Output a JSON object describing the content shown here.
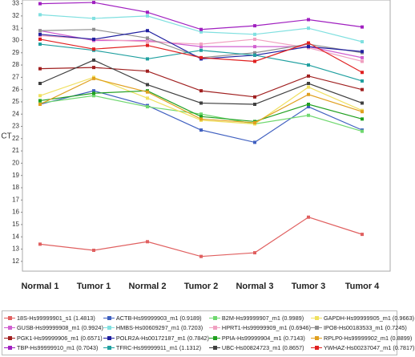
{
  "chart_data": {
    "type": "line",
    "y_label": "CT",
    "categories": [
      "Normal 1",
      "Tumor 1",
      "Normal 2",
      "Tumor 2",
      "Normal 3",
      "Tumor 3",
      "Tumor 4"
    ],
    "ylim": [
      11.2,
      33.3
    ],
    "yticks": [
      12,
      13,
      14,
      15,
      16,
      17,
      18,
      19,
      20,
      21,
      22,
      23,
      24,
      25,
      26,
      27,
      28,
      29,
      30,
      31,
      32,
      33
    ],
    "series": [
      {
        "name": "18S-Hs99999901_s1 (1.4813)",
        "color": "#e06060",
        "values": [
          13.4,
          12.9,
          13.6,
          12.4,
          12.7,
          15.6,
          14.2
        ]
      },
      {
        "name": "ACTB-Hs99999903_m1 (0.9189)",
        "color": "#4060c0",
        "values": [
          24.8,
          25.9,
          24.7,
          22.7,
          21.7,
          24.6,
          22.7
        ]
      },
      {
        "name": "B2M-Hs99999907_m1 (0.9989)",
        "color": "#70d870",
        "values": [
          24.9,
          25.5,
          24.6,
          24.0,
          23.2,
          23.9,
          22.6
        ]
      },
      {
        "name": "GAPDH-Hs99999905_m1 (0.9663)",
        "color": "#f0e060",
        "values": [
          25.5,
          27.0,
          25.3,
          23.5,
          23.2,
          26.2,
          24.3
        ]
      },
      {
        "name": "GUSB-Hs99999908_m1 (0.9924)",
        "color": "#d060d0",
        "values": [
          30.8,
          30.0,
          30.0,
          29.5,
          29.5,
          29.5,
          28.6
        ]
      },
      {
        "name": "HMBS-Hs00609297_m1 (0.7203)",
        "color": "#80e0e0",
        "values": [
          32.1,
          31.8,
          32.0,
          30.7,
          30.5,
          31.0,
          29.9
        ]
      },
      {
        "name": "HPRT1-Hs99999909_m1 (0.6946)",
        "color": "#f0a0c0",
        "values": [
          30.4,
          30.1,
          29.9,
          29.7,
          30.1,
          29.4,
          28.3
        ]
      },
      {
        "name": "IPO8-Hs00183533_m1 (0.7245)",
        "color": "#909090",
        "values": [
          30.8,
          30.9,
          30.2,
          28.6,
          29.0,
          29.7,
          29.0
        ]
      },
      {
        "name": "PGK1-Hs99999906_m1 (0.6571)",
        "color": "#a02020",
        "values": [
          27.7,
          27.8,
          27.5,
          25.9,
          25.4,
          27.1,
          26.0
        ]
      },
      {
        "name": "POLR2A-Hs00172187_m1 (0.7842)",
        "color": "#2020a0",
        "values": [
          30.5,
          30.1,
          30.8,
          28.5,
          28.8,
          29.5,
          29.1
        ]
      },
      {
        "name": "PPIA-Hs99999904_m1 (0.7143)",
        "color": "#20a020",
        "values": [
          25.1,
          25.7,
          25.9,
          23.8,
          23.4,
          24.8,
          23.6
        ]
      },
      {
        "name": "RPLP0-Hs99999902_m1 (0.8899)",
        "color": "#e0a020",
        "values": [
          24.8,
          26.9,
          25.8,
          23.6,
          23.3,
          25.6,
          24.2
        ]
      },
      {
        "name": "TBP-Hs99999910_m1 (0.7043)",
        "color": "#a020c0",
        "values": [
          33.0,
          33.1,
          32.3,
          30.9,
          31.2,
          31.7,
          31.1
        ]
      },
      {
        "name": "TFRC-Hs99999911_m1 (1.1312)",
        "color": "#20a0a0",
        "values": [
          29.7,
          29.2,
          28.5,
          29.2,
          28.8,
          28.0,
          26.7
        ]
      },
      {
        "name": "UBC-Hs00824723_m1 (0.8657)",
        "color": "#404040",
        "values": [
          26.5,
          28.4,
          26.4,
          24.9,
          24.8,
          26.5,
          24.9
        ]
      },
      {
        "name": "YWHAZ-Hs00237047_m1 (0.7817)",
        "color": "#e02020",
        "values": [
          30.1,
          29.3,
          29.6,
          28.6,
          28.3,
          29.8,
          27.4
        ]
      }
    ]
  }
}
